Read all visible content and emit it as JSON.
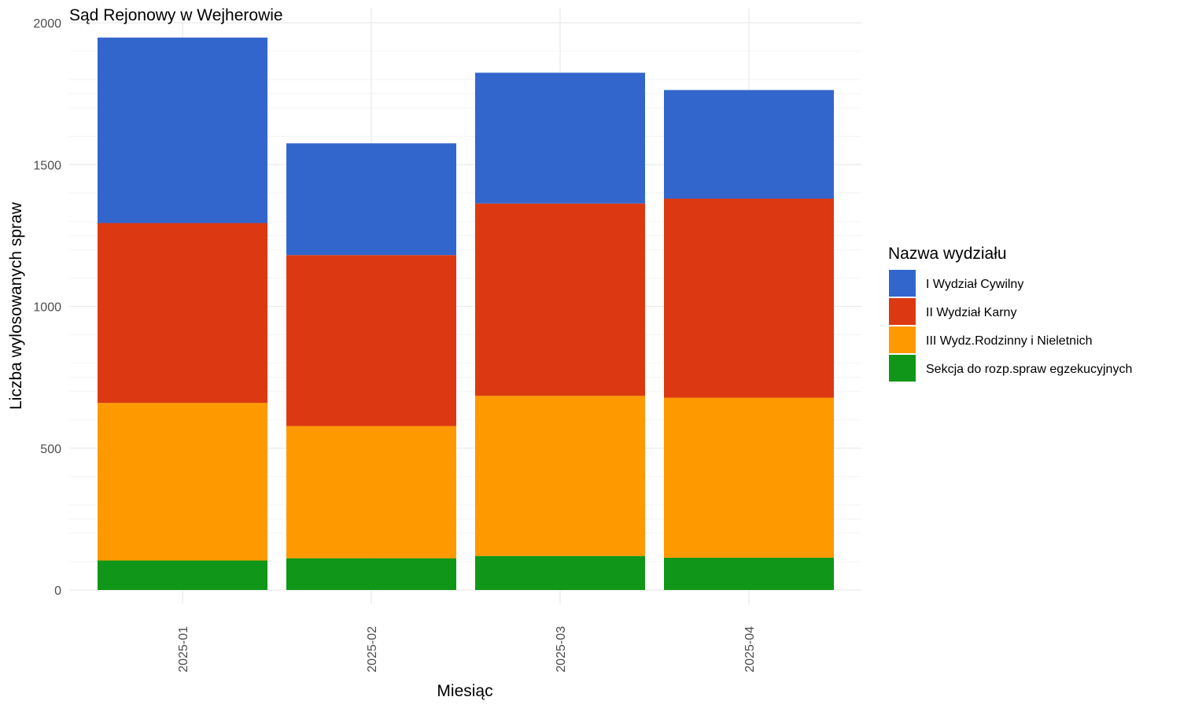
{
  "chart_data": {
    "type": "bar",
    "stacked": true,
    "title": "Sąd Rejonowy w Wejherowie",
    "xlabel": "Miesiąc",
    "ylabel": "Liczba wylosowanych spraw",
    "ylim": [
      0,
      2000
    ],
    "yticks": [
      "0",
      "500",
      "1000",
      "1500",
      "2000"
    ],
    "grid": true,
    "legend_position": "right",
    "legend_title": "Nazwa wydziału",
    "categories": [
      "2025-01",
      "2025-02",
      "2025-03",
      "2025-04"
    ],
    "series": [
      {
        "name": "Sekcja do rozp.spraw egzekucyjnych",
        "color": "#109618",
        "values": [
          104,
          112,
          120,
          114
        ]
      },
      {
        "name": "III Wydz.Rodzinny i Nieletnich",
        "color": "#FF9900",
        "values": [
          556,
          466,
          565,
          564
        ]
      },
      {
        "name": "II Wydział Karny",
        "color": "#DC3912",
        "values": [
          634,
          603,
          678,
          702
        ]
      },
      {
        "name": "I Wydział Cywilny",
        "color": "#3366CC",
        "values": [
          654,
          394,
          461,
          383
        ]
      }
    ],
    "legend_order": [
      "I Wydział Cywilny",
      "II Wydział Karny",
      "III Wydz.Rodzinny i Nieletnich",
      "Sekcja do rozp.spraw egzekucyjnych"
    ]
  }
}
